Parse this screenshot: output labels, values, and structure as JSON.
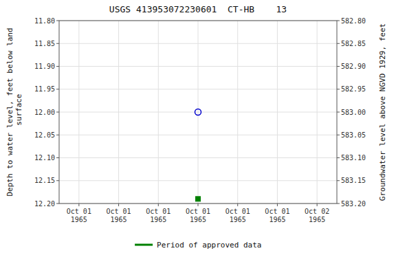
{
  "chart_data": {
    "type": "scatter",
    "title": "USGS 413953072230601  CT-HB    13",
    "y_label": "Depth to water level, feet below land\n surface",
    "y2_label": "Groundwater level above NGVD 1929, feet",
    "categories": [
      "Oct 01\n1965",
      "Oct 01\n1965",
      "Oct 01\n1965",
      "Oct 01\n1965",
      "Oct 01\n1965",
      "Oct 01\n1965",
      "Oct 02\n1965"
    ],
    "series": [
      {
        "color": "#0000cc",
        "marker": "circle",
        "values": [
          null,
          null,
          null,
          12.0,
          null,
          null,
          null
        ]
      },
      {
        "name": "Period of approved data",
        "color": "#008000",
        "marker": "square",
        "values": [
          null,
          null,
          null,
          12.19,
          null,
          null,
          null
        ]
      }
    ],
    "ylim": [
      12.2,
      11.8
    ],
    "yticks": [
      {
        "value": 11.8,
        "label": "11.80"
      },
      {
        "value": 11.85,
        "label": "11.85"
      },
      {
        "value": 11.9,
        "label": "11.90"
      },
      {
        "value": 11.95,
        "label": "11.95"
      },
      {
        "value": 12.0,
        "label": "12.00"
      },
      {
        "value": 12.05,
        "label": "12.05"
      },
      {
        "value": 12.1,
        "label": "12.10"
      },
      {
        "value": 12.15,
        "label": "12.15"
      },
      {
        "value": 12.2,
        "label": "12.20"
      }
    ],
    "y2lim": [
      583.2,
      582.8
    ],
    "y2ticks": [
      {
        "value": 582.8,
        "label": "582.80"
      },
      {
        "value": 582.85,
        "label": "582.85"
      },
      {
        "value": 582.9,
        "label": "582.90"
      },
      {
        "value": 582.95,
        "label": "582.95"
      },
      {
        "value": 583.0,
        "label": "583.00"
      },
      {
        "value": 583.05,
        "label": "583.05"
      },
      {
        "value": 583.1,
        "label": "583.10"
      },
      {
        "value": 583.15,
        "label": "583.15"
      },
      {
        "value": 583.2,
        "label": "583.20"
      }
    ],
    "grid": true,
    "legend": "bottom"
  }
}
